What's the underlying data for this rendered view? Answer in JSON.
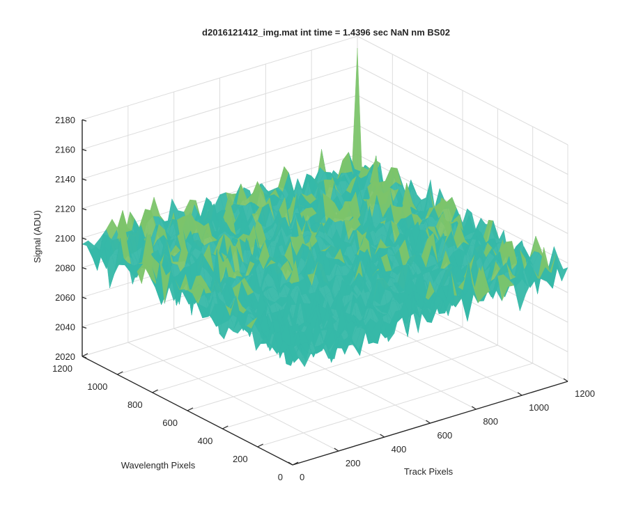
{
  "chart_data": {
    "type": "surface",
    "title": "d2016121412_img.mat int time = 1.4396 sec  NaN nm BS02",
    "xlabel": "Track Pixels",
    "ylabel": "Wavelength Pixels",
    "zlabel": "Signal (ADU)",
    "xlim": [
      0,
      1200
    ],
    "ylim": [
      0,
      1200
    ],
    "zlim": [
      2020,
      2180
    ],
    "x_ticks": [
      "0",
      "200",
      "400",
      "600",
      "800",
      "1000",
      "1200"
    ],
    "y_ticks": [
      "0",
      "200",
      "400",
      "600",
      "800",
      "1000",
      "1200"
    ],
    "z_ticks": [
      "2020",
      "2040",
      "2060",
      "2080",
      "2100",
      "2120",
      "2140",
      "2160",
      "2180"
    ],
    "surface_summary": {
      "mean_signal": 2095,
      "noise_range": [
        2030,
        2165
      ],
      "peak_value": 2172,
      "shape": "noisy plateau centred near 2095 ADU"
    },
    "grid": true,
    "colormap": [
      "#0072BD",
      "#1CA3C4",
      "#36B8A8",
      "#7CC46A",
      "#C7C241",
      "#F4C430"
    ]
  }
}
